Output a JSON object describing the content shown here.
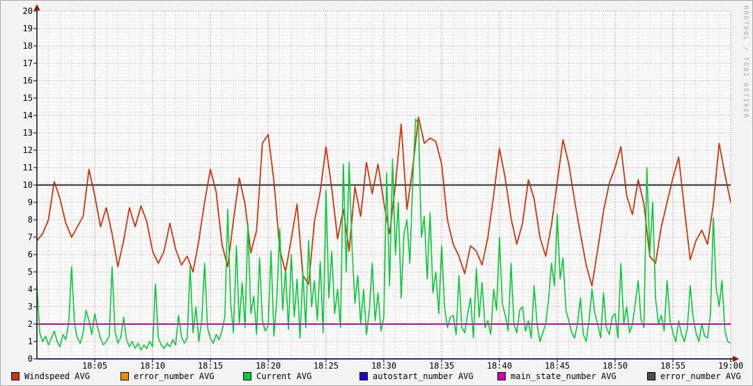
{
  "watermark": "RRDTOOL / TOBI OETIKER",
  "colors": {
    "background": "#f3f3f3",
    "plot_background": "#ffffff",
    "border": "#a8a8a8",
    "axis": "#000000",
    "axis_arrow": "#9a1500",
    "grid_major": "#d86a6a",
    "grid_minor": "#c2c2c2",
    "windspeed": "#d2330a",
    "error_number_orange": "#ea8f00",
    "current": "#00cc33",
    "autostart_number": "#2200cc",
    "main_state_number": "#d400b0",
    "error_number_gray": "#4d4d4d"
  },
  "legend": {
    "items": [
      {
        "label": "Windspeed AVG",
        "color": "#d2330a"
      },
      {
        "label": "error_number AVG",
        "color": "#ea8f00"
      },
      {
        "label": "Current AVG",
        "color": "#00cc33"
      },
      {
        "label": "autostart_number AVG",
        "color": "#2200cc"
      },
      {
        "label": "main_state_number AVG",
        "color": "#d400b0"
      },
      {
        "label": "error_number AVG",
        "color": "#4d4d4d"
      }
    ]
  },
  "chart_data": {
    "type": "line",
    "title": "",
    "xlabel": "",
    "ylabel": "",
    "ylim": [
      0,
      20
    ],
    "y_tick_step": 1,
    "y_minor_step": 0.2,
    "x_range_minutes": [
      0,
      60
    ],
    "x_major_step_minutes": 5,
    "x_minor_step_minutes": 1,
    "x_tick_labels": [
      "18:05",
      "18:10",
      "18:15",
      "18:20",
      "18:25",
      "18:30",
      "18:35",
      "18:40",
      "18:45",
      "18:50",
      "18:55",
      "19:00"
    ],
    "grid": true,
    "legend_position": "bottom",
    "hlines": [
      {
        "name": "error_number AVG",
        "value": 10,
        "color": "#4d4d4d",
        "width": 2.4
      },
      {
        "name": "main_state_number AVG",
        "value": 2,
        "color": "#d400b0",
        "width": 2
      },
      {
        "name": "autostart_number AVG",
        "value": 0,
        "color": "#2200cc",
        "width": 1.6
      }
    ],
    "series": [
      {
        "name": "Windspeed AVG",
        "color": "#d2330a",
        "width": 1.8,
        "step_seconds": 30,
        "values": [
          6.8,
          7.2,
          8.0,
          10.2,
          9.2,
          7.8,
          7.0,
          7.6,
          8.2,
          10.9,
          9.4,
          7.6,
          8.7,
          7.2,
          5.3,
          6.8,
          8.7,
          7.6,
          8.8,
          7.9,
          6.2,
          5.5,
          6.2,
          7.8,
          6.3,
          5.4,
          5.9,
          5.0,
          6.8,
          9.0,
          10.9,
          9.6,
          6.6,
          5.3,
          8.0,
          10.4,
          8.9,
          6.1,
          7.4,
          12.4,
          12.9,
          10.2,
          6.3,
          5.0,
          6.9,
          8.9,
          4.8,
          4.3,
          7.9,
          9.6,
          12.2,
          9.8,
          6.9,
          8.6,
          6.2,
          9.9,
          8.2,
          11.3,
          9.5,
          11.2,
          9.0,
          7.2,
          10.0,
          13.5,
          8.6,
          11.0,
          13.9,
          12.4,
          12.7,
          12.5,
          11.2,
          8.0,
          6.6,
          5.9,
          4.9,
          6.5,
          6.2,
          5.4,
          7.0,
          9.4,
          12.1,
          10.4,
          8.1,
          6.6,
          7.8,
          10.3,
          9.2,
          7.0,
          5.9,
          7.7,
          10.2,
          12.6,
          11.2,
          9.1,
          7.2,
          5.4,
          4.2,
          6.3,
          8.5,
          10.1,
          11.0,
          12.2,
          9.4,
          8.3,
          10.3,
          8.9,
          5.9,
          5.5,
          7.6,
          9.0,
          10.4,
          11.6,
          8.6,
          5.7,
          6.8,
          7.4,
          6.6,
          8.9,
          12.4,
          10.6,
          9.0
        ]
      },
      {
        "name": "Current AVG",
        "color": "#00cc33",
        "width": 1.6,
        "step_seconds": 15,
        "values": [
          4.2,
          1.5,
          1.0,
          1.3,
          0.8,
          1.2,
          1.6,
          1.0,
          0.7,
          1.4,
          1.1,
          2.1,
          5.3,
          2.0,
          1.2,
          0.9,
          1.5,
          2.8,
          2.2,
          1.4,
          2.6,
          1.8,
          1.2,
          0.8,
          1.0,
          1.3,
          5.3,
          1.6,
          0.9,
          1.2,
          2.4,
          1.1,
          0.7,
          1.0,
          0.6,
          0.9,
          0.5,
          0.8,
          0.6,
          1.0,
          0.7,
          4.3,
          1.2,
          0.8,
          0.6,
          0.9,
          0.7,
          1.1,
          0.8,
          2.5,
          1.3,
          0.9,
          1.2,
          5.3,
          1.5,
          3.0,
          1.0,
          2.2,
          5.5,
          1.8,
          1.2,
          0.9,
          1.4,
          1.1,
          1.6,
          2.4,
          8.6,
          3.2,
          1.5,
          6.5,
          2.0,
          4.4,
          1.8,
          7.8,
          2.6,
          3.6,
          1.4,
          5.8,
          2.2,
          1.6,
          1.9,
          6.2,
          1.3,
          3.4,
          7.5,
          2.8,
          5.1,
          1.7,
          6.0,
          2.4,
          4.6,
          1.2,
          5.0,
          1.8,
          6.8,
          3.0,
          4.5,
          2.2,
          5.6,
          1.5,
          9.7,
          3.5,
          6.2,
          2.6,
          4.0,
          1.8,
          11.2,
          5.0,
          11.3,
          6.4,
          3.2,
          4.8,
          2.0,
          4.0,
          1.4,
          2.8,
          5.5,
          2.2,
          3.8,
          1.6,
          2.4,
          10.7,
          4.2,
          11.5,
          6.0,
          9.0,
          3.5,
          7.2,
          8.0,
          5.5,
          10.2,
          13.8,
          13.5,
          7.0,
          8.2,
          4.6,
          8.4,
          3.8,
          5.0,
          2.6,
          6.5,
          3.0,
          1.8,
          2.4,
          2.5,
          1.4,
          4.8,
          1.8,
          1.5,
          2.6,
          3.5,
          1.2,
          5.2,
          2.4,
          4.4,
          1.8,
          2.2,
          1.4,
          4.0,
          2.8,
          7.0,
          3.2,
          2.5,
          1.6,
          5.5,
          2.0,
          1.5,
          2.8,
          3.0,
          1.6,
          2.2,
          1.2,
          4.2,
          2.0,
          1.0,
          1.5,
          2.0,
          3.4,
          5.5,
          4.2,
          8.3,
          4.6,
          5.8,
          2.8,
          2.2,
          1.5,
          1.2,
          2.0,
          3.5,
          1.4,
          1.0,
          2.2,
          4.0,
          2.6,
          2.0,
          1.2,
          3.8,
          1.8,
          1.4,
          2.4,
          2.6,
          1.2,
          5.5,
          2.0,
          3.0,
          1.5,
          2.0,
          3.2,
          4.5,
          2.2,
          1.8,
          11.0,
          6.0,
          9.0,
          3.5,
          2.0,
          2.5,
          1.6,
          4.5,
          2.2,
          1.5,
          1.0,
          2.2,
          1.4,
          1.0,
          1.8,
          4.2,
          2.4,
          1.5,
          1.0,
          2.0,
          1.3,
          1.2,
          2.6,
          8.1,
          4.0,
          3.0,
          4.5,
          1.6,
          1.0,
          0.9
        ]
      }
    ]
  }
}
